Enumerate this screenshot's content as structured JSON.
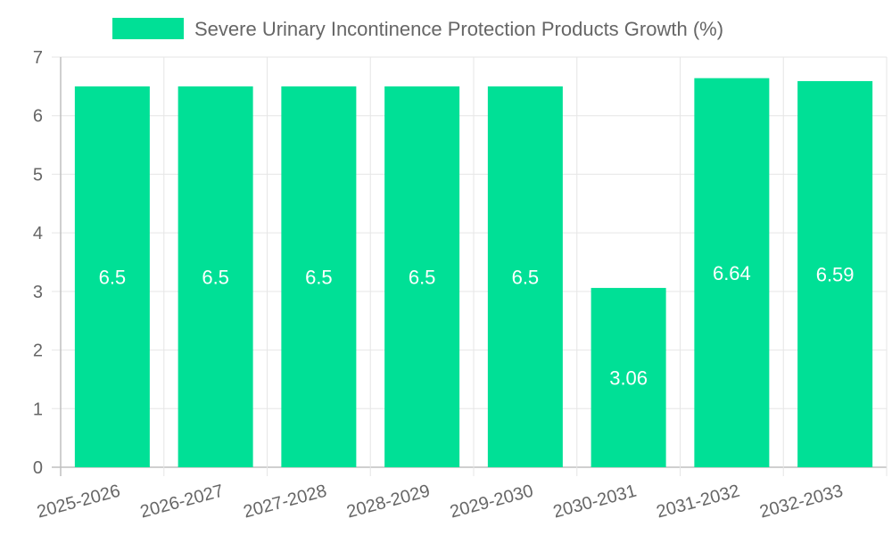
{
  "chart_data": {
    "type": "bar",
    "legend": {
      "label": "Severe Urinary Incontinence Protection Products Growth (%)",
      "placement": "top-center"
    },
    "categories": [
      "2025-2026",
      "2026-2027",
      "2027-2028",
      "2028-2029",
      "2029-2030",
      "2030-2031",
      "2031-2032",
      "2032-2033"
    ],
    "series": [
      {
        "name": "Severe Urinary Incontinence Protection Products Growth (%)",
        "values": [
          6.5,
          6.5,
          6.5,
          6.5,
          6.5,
          3.06,
          6.64,
          6.59
        ],
        "color": "#00e096"
      }
    ],
    "ylim": [
      0,
      7
    ],
    "yticks": [
      0,
      1,
      2,
      3,
      4,
      5,
      6,
      7
    ],
    "xlabel": "",
    "ylabel": "",
    "grid": true
  },
  "colors": {
    "bar": "#00e096",
    "grid": "#e6e6e6",
    "axis": "#bfbfbf",
    "text": "#666666",
    "data_label": "#ffffff"
  }
}
